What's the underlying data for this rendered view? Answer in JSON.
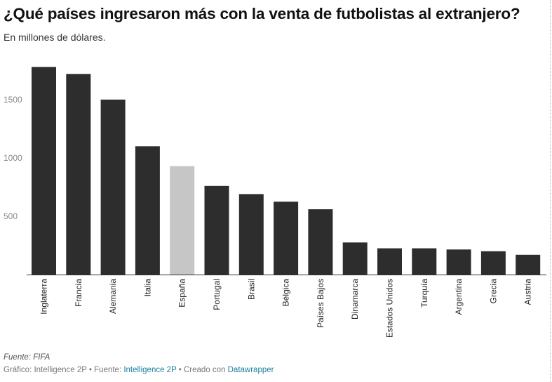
{
  "header": {
    "title": "¿Qué países ingresaron más con la venta de futbolistas al extranjero?",
    "subtitle": "En millones de dólares."
  },
  "footer": {
    "source": "Fuente: FIFA",
    "credit_prefix": "Gráfico: Intelligence 2P • Fuente: ",
    "credit_source_link": "Intelligence 2P",
    "credit_middle": " • Creado con ",
    "credit_tool_link": "Datawrapper"
  },
  "colors": {
    "bar": "#2d2d2d",
    "highlight": "#c6c6c6",
    "axis": "#333333",
    "tick_text": "#888888",
    "link": "#1d81a2"
  },
  "chart_data": {
    "type": "bar",
    "title": "¿Qué países ingresaron más con la venta de futbolistas al extranjero?",
    "subtitle": "En millones de dólares.",
    "xlabel": "",
    "ylabel": "",
    "categories": [
      "Inglaterra",
      "Francia",
      "Alemania",
      "Italia",
      "España",
      "Portugal",
      "Brasil",
      "Bélgica",
      "Países Bajos",
      "Dinamarca",
      "Estados Unidos",
      "Turquía",
      "Argentina",
      "Grecia",
      "Austria"
    ],
    "values": [
      1780,
      1720,
      1500,
      1100,
      930,
      760,
      690,
      625,
      560,
      275,
      225,
      225,
      215,
      200,
      170
    ],
    "highlight": "España",
    "ylim": [
      0,
      1800
    ],
    "yticks": [
      500,
      1000,
      1500
    ],
    "grid": false
  }
}
